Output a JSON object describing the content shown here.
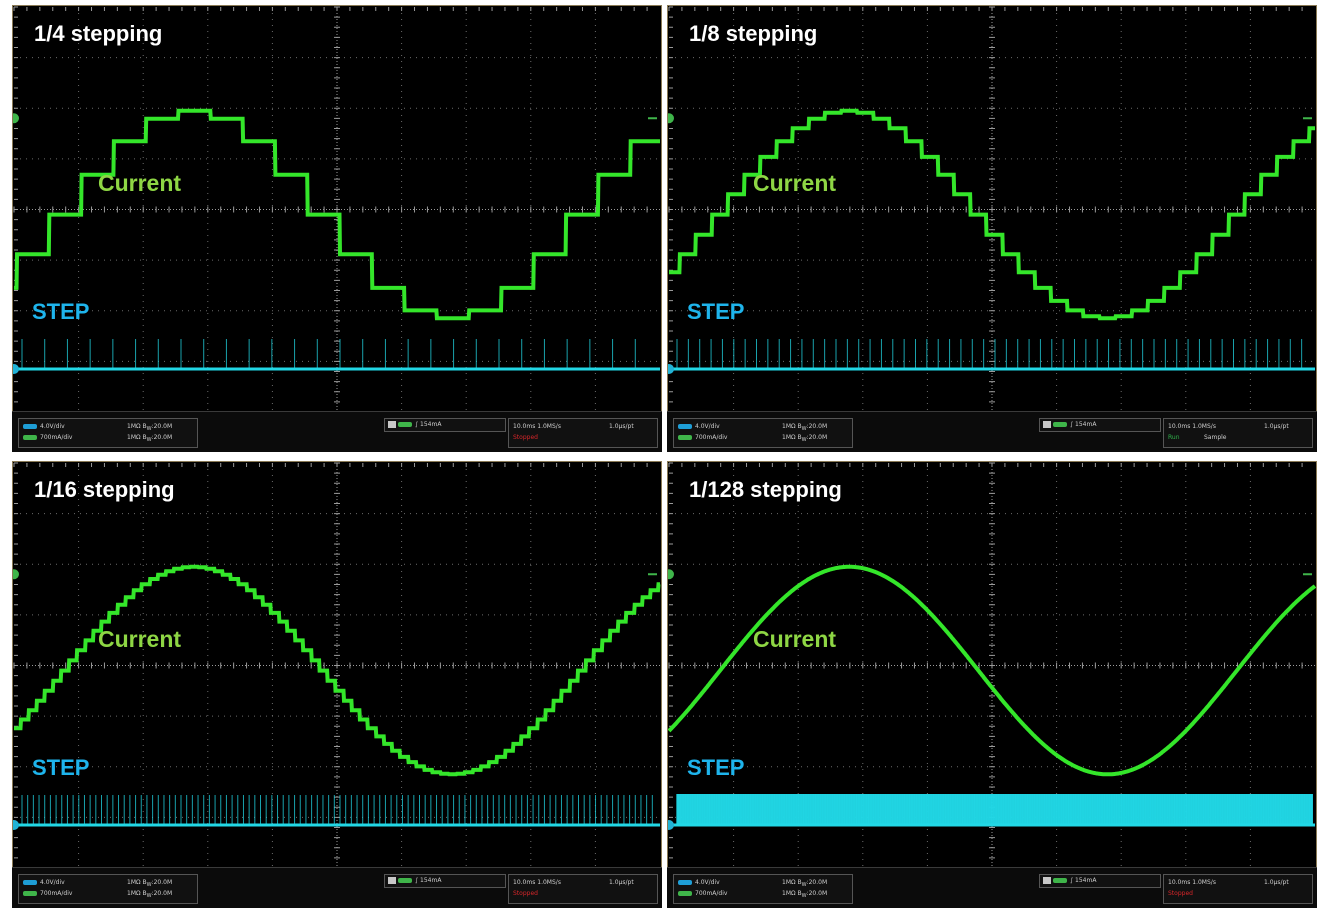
{
  "colors": {
    "current_trace": "#34e62a",
    "step_trace": "#22d8e6",
    "current_label": "#8ed644",
    "step_label": "#1eb4ec",
    "grid": "#6b6b6b",
    "background": "#000000"
  },
  "status_bar": {
    "ch1_scale": "4.0V/div",
    "ch4_scale": "700mA/div",
    "impedance": "1MΩ",
    "bandwidth": "B",
    "bandwidth_sub": "W",
    "bandwidth_value": ":20.0M",
    "trigger_level": "154mA",
    "timebase": "10.0ms",
    "sample_rate": "1.0MS/s",
    "resolution": "1.0µs/pt",
    "state_stopped": "Stopped",
    "state_run": "Run",
    "acq_mode": "Sample"
  },
  "chart_data": [
    {
      "type": "line",
      "title": "1/4 stepping",
      "series": [
        {
          "name": "Current",
          "microsteps_per_full_step": 4,
          "peak_div": 2.05,
          "offset_div": -0.1,
          "cycles_on_screen": 1.25
        },
        {
          "name": "STEP",
          "pulse_count": 28
        }
      ],
      "grid": true
    },
    {
      "type": "line",
      "title": "1/8 stepping",
      "series": [
        {
          "name": "Current",
          "microsteps_per_full_step": 8,
          "peak_div": 2.05,
          "offset_div": -0.1,
          "cycles_on_screen": 1.25
        },
        {
          "name": "STEP",
          "pulse_count": 56
        }
      ],
      "grid": true
    },
    {
      "type": "line",
      "title": "1/16 stepping",
      "series": [
        {
          "name": "Current",
          "microsteps_per_full_step": 16,
          "peak_div": 2.05,
          "offset_div": -0.1,
          "cycles_on_screen": 1.25
        },
        {
          "name": "STEP",
          "pulse_count": 112
        }
      ],
      "grid": true
    },
    {
      "type": "line",
      "title": "1/128 stepping",
      "series": [
        {
          "name": "Current",
          "microsteps_per_full_step": 128,
          "peak_div": 2.05,
          "offset_div": -0.1,
          "cycles_on_screen": 1.25
        },
        {
          "name": "STEP",
          "pulse_count": 900
        }
      ],
      "grid": true
    }
  ],
  "labels": {
    "current": "Current",
    "step": "STEP"
  },
  "panels": [
    {
      "title": "1/4 stepping",
      "state": "Stopped"
    },
    {
      "title": "1/8 stepping",
      "state": "Run"
    },
    {
      "title": "1/16 stepping",
      "state": "Stopped"
    },
    {
      "title": "1/128 stepping",
      "state": "Stopped"
    }
  ]
}
